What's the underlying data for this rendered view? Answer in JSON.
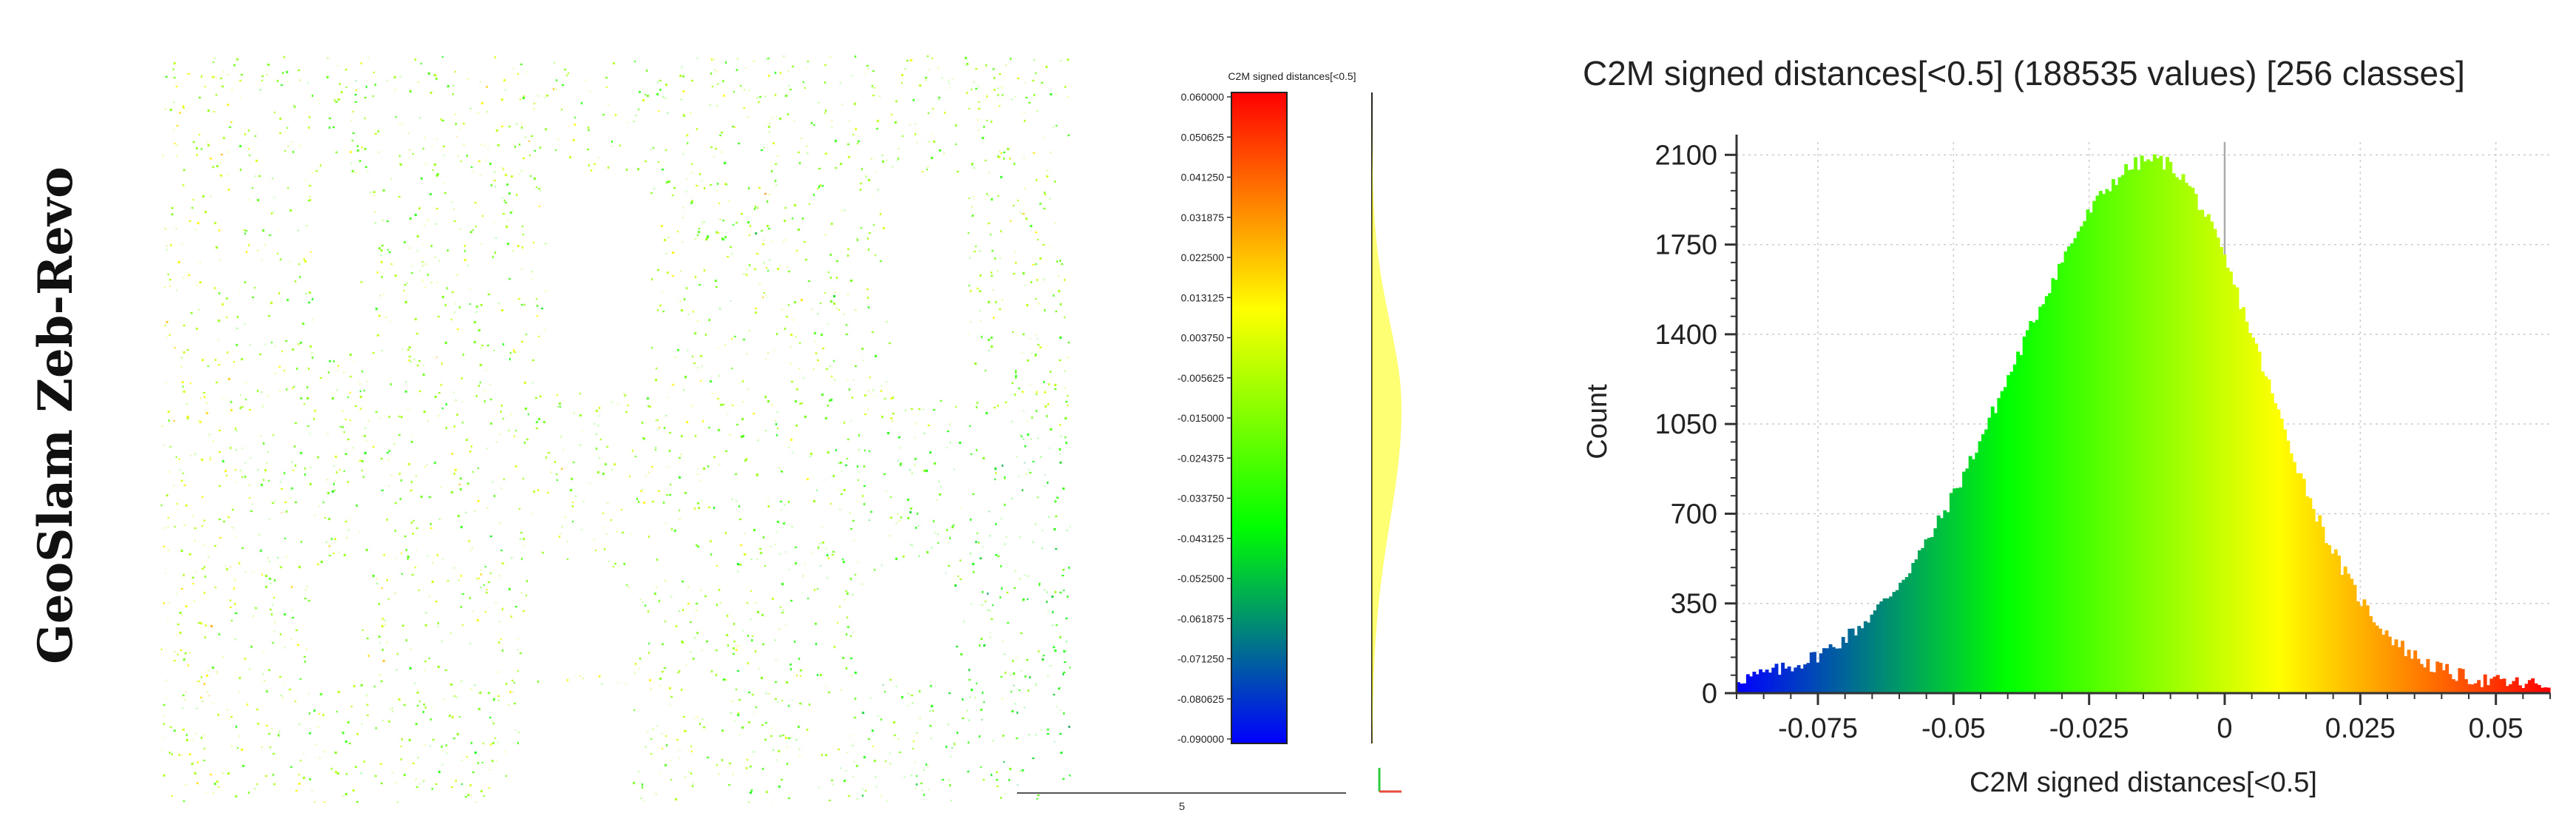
{
  "side_title": "GeoSlam Zeb-Revo",
  "pointcloud": {
    "colorbar_title": "C2M signed distances[<0.5]",
    "colorbar_ticks": [
      "0.060000",
      "0.050625",
      "0.041250",
      "0.031875",
      "0.022500",
      "0.013125",
      "0.003750",
      "-0.005625",
      "-0.015000",
      "-0.024375",
      "-0.033750",
      "-0.043125",
      "-0.052500",
      "-0.061875",
      "-0.071250",
      "-0.080625",
      "-0.090000"
    ],
    "scale_label": "5"
  },
  "chart_data": {
    "type": "bar",
    "title": "C2M signed distances[<0.5] (188535 values)  [256 classes]",
    "xlabel": "C2M signed distances[<0.5]",
    "ylabel": "Count",
    "xlim": [
      -0.09,
      0.06
    ],
    "ylim": [
      0,
      2150
    ],
    "x_ticks": [
      -0.075,
      -0.05,
      -0.025,
      0,
      0.025,
      0.05
    ],
    "x_tick_labels": [
      "-0.075",
      "-0.05",
      "-0.025",
      "0",
      "0.025",
      "0.05"
    ],
    "y_ticks": [
      0,
      350,
      700,
      1050,
      1400,
      1750,
      2100
    ],
    "y_tick_labels": [
      "0",
      "350",
      "700",
      "1050",
      "1400",
      "1750",
      "2100"
    ],
    "grid": true,
    "classes": 256,
    "distribution": {
      "mean": -0.013,
      "std_left": 0.026,
      "std_right": 0.02,
      "peak_count": 2050
    },
    "colormap": [
      "#0000ff",
      "#00ff00",
      "#ffff00",
      "#ff0000"
    ]
  }
}
